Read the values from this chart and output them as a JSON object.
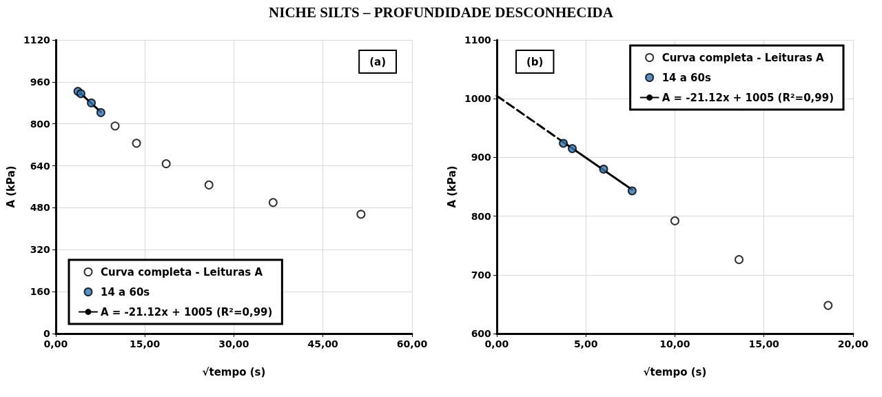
{
  "chart_data": [
    {
      "type": "scatter",
      "title": "NICHE SILTS – PROFUNDIDADE DESCONHECIDA",
      "xlabel": "√tempo (s)",
      "ylabel": "A (kPa)",
      "xlim": [
        0,
        60
      ],
      "xticks": [
        {
          "value": 0,
          "label": "0,00"
        },
        {
          "value": 15,
          "label": "15,00"
        },
        {
          "value": 30,
          "label": "30,00"
        },
        {
          "value": 45,
          "label": "45,00"
        },
        {
          "value": 60,
          "label": "60,00"
        }
      ],
      "ylim": [
        0,
        1120
      ],
      "yticks": [
        0,
        160,
        320,
        480,
        640,
        800,
        960,
        1120
      ],
      "grid": true,
      "legend": "bottom left",
      "marker": "circle",
      "annotations": [
        "(a)"
      ],
      "series": [
        {
          "name": "Curva completa - Leituras A",
          "color": "#ffffff",
          "x": [
            10.0,
            13.6,
            18.6,
            25.8,
            36.6,
            51.4
          ],
          "values": [
            792,
            726,
            648,
            567,
            500,
            455
          ]
        },
        {
          "name": "14 a 60s",
          "color": "#2e75b6",
          "x": [
            3.74,
            4.24,
            6.0,
            7.6
          ],
          "values": [
            924,
            915,
            880,
            843
          ]
        },
        {
          "name": "A = -21.12x + 1005 (R²=0,99)",
          "type": "line",
          "color": "#000000",
          "line_style": "solid",
          "marker": "none",
          "x": [
            3.74,
            7.6
          ],
          "values": [
            926,
            845
          ]
        }
      ]
    },
    {
      "type": "scatter",
      "xlabel": "√tempo (s)",
      "ylabel": "A (kPa)",
      "xlim": [
        0,
        20
      ],
      "xticks": [
        {
          "value": 0,
          "label": "0,00"
        },
        {
          "value": 5,
          "label": "5,00"
        },
        {
          "value": 10,
          "label": "10,00"
        },
        {
          "value": 15,
          "label": "15,00"
        },
        {
          "value": 20,
          "label": "20,00"
        }
      ],
      "ylim": [
        600,
        1100
      ],
      "yticks": [
        600,
        700,
        800,
        900,
        1000,
        1100
      ],
      "grid": true,
      "legend": "top right",
      "marker": "circle",
      "annotations": [
        "(b)"
      ],
      "series": [
        {
          "name": "Curva completa - Leituras A",
          "color": "#ffffff",
          "x": [
            10.0,
            13.6,
            18.6
          ],
          "values": [
            792,
            726,
            648
          ]
        },
        {
          "name": "14 a 60s",
          "color": "#2e75b6",
          "x": [
            3.74,
            4.24,
            6.0,
            7.6
          ],
          "values": [
            924,
            915,
            880,
            843
          ]
        },
        {
          "type": "line",
          "color": "#000000",
          "line_style": "dashed",
          "marker": "none",
          "x": [
            0,
            3.74
          ],
          "values": [
            1005,
            926
          ]
        },
        {
          "name": "A = -21.12x + 1005 (R²=0,99)",
          "type": "line",
          "color": "#000000",
          "line_style": "solid",
          "marker": "none",
          "x": [
            3.74,
            7.6
          ],
          "values": [
            926,
            845
          ]
        }
      ]
    }
  ]
}
